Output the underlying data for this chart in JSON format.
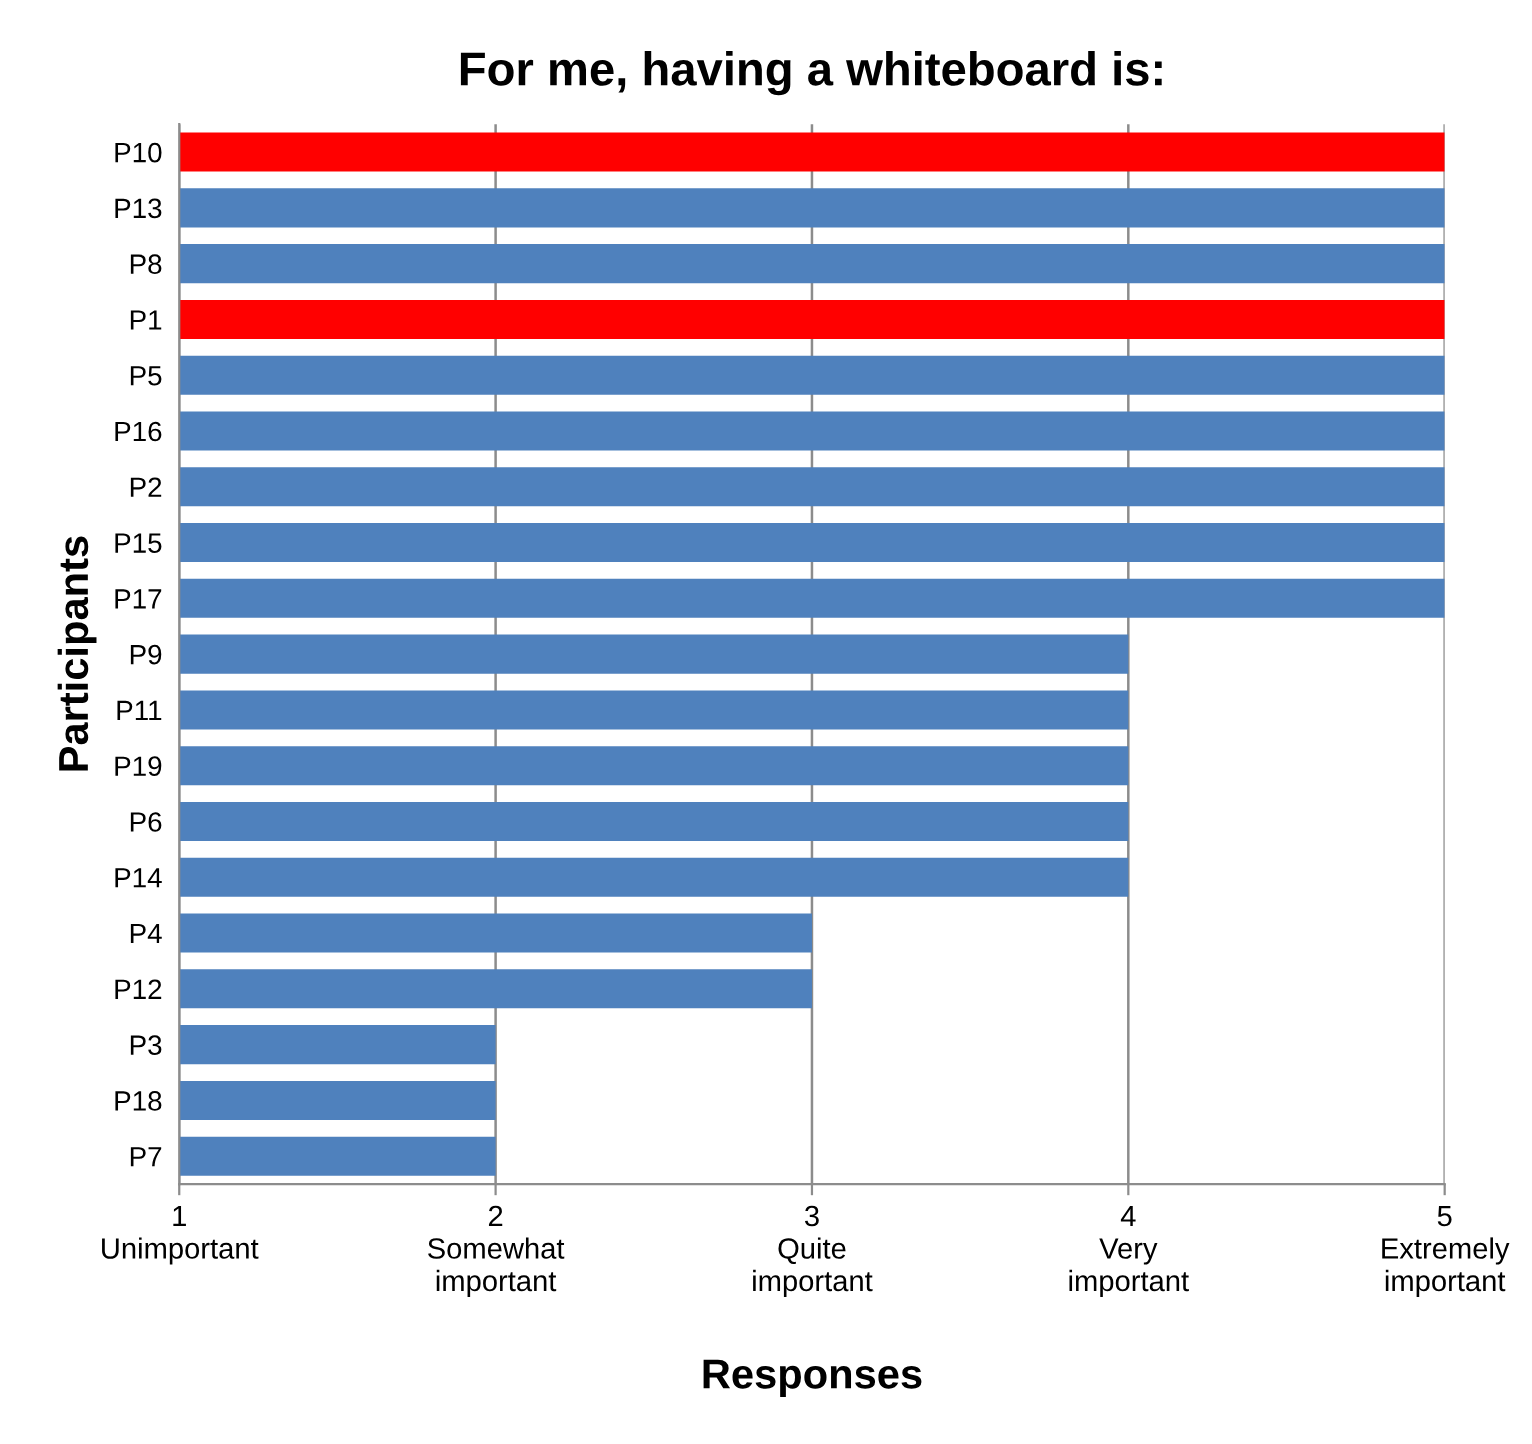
{
  "chart_data": {
    "type": "bar",
    "orientation": "horizontal",
    "title": "For me, having a whiteboard is:",
    "xlabel": "Responses",
    "ylabel": "Participants",
    "categories": [
      "P10",
      "P13",
      "P8",
      "P1",
      "P5",
      "P16",
      "P2",
      "P15",
      "P17",
      "P9",
      "P11",
      "P19",
      "P6",
      "P14",
      "P4",
      "P12",
      "P3",
      "P18",
      "P7"
    ],
    "values": [
      5,
      5,
      5,
      5,
      5,
      5,
      5,
      5,
      5,
      4,
      4,
      4,
      4,
      4,
      3,
      3,
      2,
      2,
      2
    ],
    "colors": [
      "#ff0000",
      "#4f81bd",
      "#4f81bd",
      "#ff0000",
      "#4f81bd",
      "#4f81bd",
      "#4f81bd",
      "#4f81bd",
      "#4f81bd",
      "#4f81bd",
      "#4f81bd",
      "#4f81bd",
      "#4f81bd",
      "#4f81bd",
      "#4f81bd",
      "#4f81bd",
      "#4f81bd",
      "#4f81bd",
      "#4f81bd"
    ],
    "xlim": [
      1,
      5
    ],
    "xticks": [
      {
        "value": 1,
        "label": "1\nUnimportant"
      },
      {
        "value": 2,
        "label": "2\nSomewhat\nimportant"
      },
      {
        "value": 3,
        "label": "3\nQuite\nimportant"
      },
      {
        "value": 4,
        "label": "4\nVery\nimportant"
      },
      {
        "value": 5,
        "label": "5\nExtremely\nimportant"
      }
    ],
    "grid": "x",
    "legend": false
  }
}
